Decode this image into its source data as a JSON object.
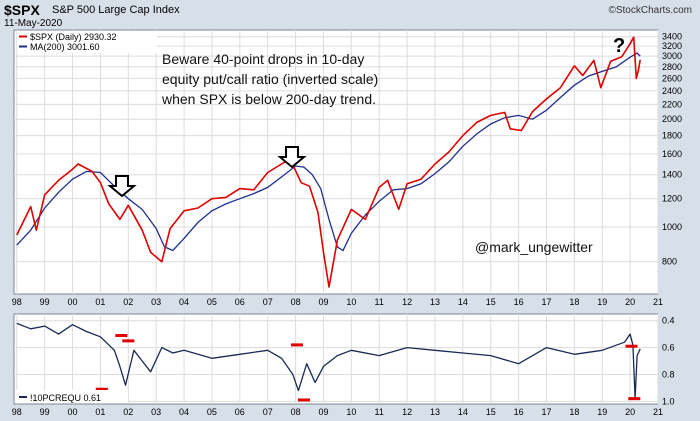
{
  "header": {
    "ticker": "$SPX",
    "name": "S&P 500 Large Cap Index",
    "date": "11-May-2020",
    "brand": "©StockCharts.com"
  },
  "annotations": {
    "note_lines": [
      "Beware 40-point drops in 10-day",
      "equity put/call ratio (inverted scale)",
      "when SPX is below 200-day trend."
    ],
    "author": "@mark_ungewitter",
    "question": "?"
  },
  "colors": {
    "price": "#e00000",
    "ma": "#1f2f8f",
    "pcr": "#1a2a55",
    "markers": "#e00000",
    "panel_bg": "#ffffff",
    "grid": "#dcdcdc",
    "frame": "#d7dfe8"
  },
  "chart_data": [
    {
      "type": "line",
      "title": "$SPX S&P 500 Large Cap Index",
      "y_scale": "log",
      "ylim": [
        650,
        3550
      ],
      "y_ticks": [
        800,
        1000,
        1200,
        1400,
        1600,
        1800,
        2000,
        2200,
        2400,
        2600,
        2800,
        3000,
        3200,
        3400
      ],
      "x_ticks": [
        "98",
        "99",
        "00",
        "01",
        "02",
        "03",
        "04",
        "05",
        "06",
        "07",
        "08",
        "09",
        "10",
        "11",
        "12",
        "13",
        "14",
        "15",
        "16",
        "17",
        "18",
        "19",
        "20",
        "21"
      ],
      "legend_position": "top-left",
      "series": [
        {
          "name": "$SPX (Daily) 2930.32",
          "x": [
            1998.0,
            1998.5,
            1998.7,
            1999.0,
            1999.5,
            2000.0,
            2000.2,
            2000.7,
            2001.0,
            2001.3,
            2001.7,
            2002.0,
            2002.5,
            2002.8,
            2003.2,
            2003.5,
            2004.0,
            2004.5,
            2005.0,
            2005.5,
            2006.0,
            2006.5,
            2007.0,
            2007.5,
            2007.8,
            2008.2,
            2008.5,
            2008.8,
            2009.0,
            2009.2,
            2009.5,
            2010.0,
            2010.5,
            2011.0,
            2011.3,
            2011.7,
            2012.0,
            2012.5,
            2013.0,
            2013.5,
            2014.0,
            2014.5,
            2015.0,
            2015.5,
            2015.7,
            2016.1,
            2016.5,
            2017.0,
            2017.5,
            2018.0,
            2018.3,
            2018.7,
            2018.95,
            2019.3,
            2019.7,
            2020.0,
            2020.13,
            2020.22,
            2020.3,
            2020.36
          ],
          "values": [
            950,
            1140,
            980,
            1230,
            1350,
            1450,
            1500,
            1430,
            1330,
            1160,
            1050,
            1150,
            980,
            850,
            800,
            990,
            1110,
            1130,
            1200,
            1210,
            1280,
            1270,
            1420,
            1500,
            1550,
            1330,
            1300,
            1100,
            850,
            680,
            920,
            1120,
            1050,
            1290,
            1350,
            1120,
            1320,
            1360,
            1500,
            1620,
            1800,
            1960,
            2050,
            2090,
            1880,
            1860,
            2100,
            2280,
            2450,
            2820,
            2650,
            2920,
            2450,
            2900,
            2990,
            3250,
            3390,
            2600,
            2750,
            2930
          ]
        },
        {
          "name": "MA(200) 3001.60",
          "x": [
            1998.0,
            1998.5,
            1999.0,
            1999.5,
            2000.0,
            2000.5,
            2001.0,
            2001.5,
            2002.0,
            2002.5,
            2003.0,
            2003.3,
            2003.6,
            2004.0,
            2004.5,
            2005.0,
            2005.5,
            2006.0,
            2006.5,
            2007.0,
            2007.5,
            2008.0,
            2008.3,
            2008.6,
            2008.9,
            2009.2,
            2009.5,
            2009.7,
            2010.0,
            2010.5,
            2011.0,
            2011.5,
            2012.0,
            2012.5,
            2013.0,
            2013.5,
            2014.0,
            2014.5,
            2015.0,
            2015.5,
            2016.0,
            2016.5,
            2017.0,
            2017.5,
            2018.0,
            2018.5,
            2019.0,
            2019.5,
            2020.0,
            2020.25,
            2020.36
          ],
          "values": [
            890,
            980,
            1130,
            1250,
            1360,
            1430,
            1420,
            1300,
            1200,
            1120,
            990,
            880,
            860,
            930,
            1030,
            1110,
            1160,
            1200,
            1240,
            1290,
            1380,
            1480,
            1470,
            1400,
            1280,
            1050,
            880,
            860,
            960,
            1080,
            1180,
            1270,
            1280,
            1320,
            1410,
            1520,
            1680,
            1820,
            1940,
            2020,
            2050,
            2000,
            2120,
            2300,
            2490,
            2640,
            2720,
            2800,
            2980,
            3060,
            3001.6
          ]
        }
      ]
    },
    {
      "type": "line",
      "y_scale": "inverted",
      "ylim": [
        0.35,
        1.02
      ],
      "y_ticks": [
        0.4,
        0.6,
        0.8,
        1.0
      ],
      "x_ticks": [
        "98",
        "99",
        "00",
        "01",
        "02",
        "03",
        "04",
        "05",
        "06",
        "07",
        "08",
        "09",
        "10",
        "11",
        "12",
        "13",
        "14",
        "15",
        "16",
        "17",
        "18",
        "19",
        "20",
        "21"
      ],
      "series": [
        {
          "name": "!10PCREQU 0.61",
          "x": [
            1998.0,
            1998.5,
            1999.0,
            1999.5,
            2000.0,
            2000.5,
            2001.0,
            2001.5,
            2001.7,
            2001.9,
            2002.2,
            2002.5,
            2002.8,
            2003.2,
            2003.6,
            2004.0,
            2005.0,
            2006.0,
            2007.0,
            2007.5,
            2007.9,
            2008.1,
            2008.4,
            2008.7,
            2009.0,
            2009.5,
            2010.0,
            2011.0,
            2012.0,
            2013.0,
            2014.0,
            2015.0,
            2016.0,
            2017.0,
            2018.0,
            2019.0,
            2019.8,
            2020.0,
            2020.1,
            2020.18,
            2020.25,
            2020.36
          ],
          "values": [
            0.42,
            0.46,
            0.44,
            0.5,
            0.43,
            0.48,
            0.52,
            0.62,
            0.74,
            0.88,
            0.62,
            0.7,
            0.78,
            0.6,
            0.64,
            0.62,
            0.68,
            0.65,
            0.62,
            0.68,
            0.8,
            0.92,
            0.72,
            0.86,
            0.74,
            0.66,
            0.62,
            0.66,
            0.6,
            0.62,
            0.64,
            0.66,
            0.72,
            0.6,
            0.65,
            0.62,
            0.56,
            0.5,
            0.58,
            0.98,
            0.66,
            0.61
          ]
        },
        {
          "name": "drop-markers",
          "x": [
            2001.05,
            2001.75,
            2002.0,
            2008.05,
            2008.3,
            2020.05,
            2020.15
          ],
          "values": [
            0.91,
            0.51,
            0.55,
            0.58,
            0.99,
            0.59,
            0.98
          ]
        }
      ]
    }
  ]
}
